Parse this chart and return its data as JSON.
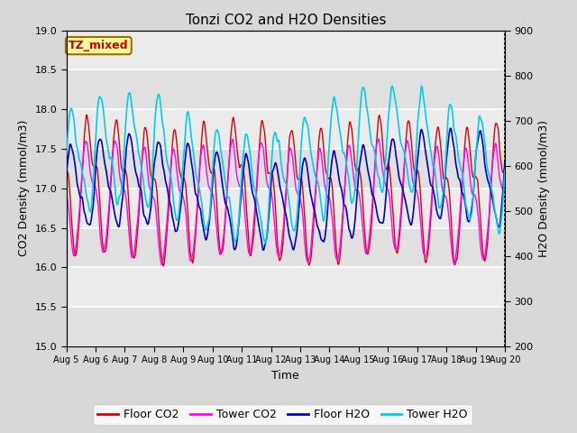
{
  "title": "Tonzi CO2 and H2O Densities",
  "xlabel": "Time",
  "ylabel_left": "CO2 Density (mmol/m3)",
  "ylabel_right": "H2O Density (mmol/m3)",
  "co2_ylim": [
    15.0,
    19.0
  ],
  "h2o_ylim": [
    200,
    900
  ],
  "x_tick_labels": [
    "Aug 5",
    "Aug 6",
    "Aug 7",
    "Aug 8",
    "Aug 9",
    "Aug 10",
    "Aug 11",
    "Aug 12",
    "Aug 13",
    "Aug 14",
    "Aug 15",
    "Aug 16",
    "Aug 17",
    "Aug 18",
    "Aug 19",
    "Aug 20"
  ],
  "annotation_text": "TZ_mixed",
  "annotation_facecolor": "#ffff99",
  "annotation_edgecolor": "#aa6600",
  "annotation_textcolor": "#cc0000",
  "colors": {
    "floor_co2": "#dd0000",
    "tower_co2": "#ff00ff",
    "floor_h2o": "#0000cc",
    "tower_h2o": "#00ccee"
  },
  "legend_labels": [
    "Floor CO2",
    "Tower CO2",
    "Floor H2O",
    "Tower H2O"
  ],
  "background_color": "#d8d8d8",
  "plot_bg_color": "#e8e8e8",
  "grid_color": "#ffffff",
  "n_days": 15,
  "pts_per_day": 96
}
